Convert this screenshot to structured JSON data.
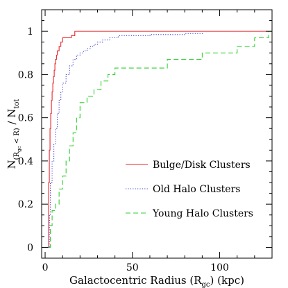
{
  "chart_data": {
    "type": "line",
    "step": true,
    "xlabel": {
      "prefix": "Galactocentric Radius (R",
      "sub": "gc",
      "suffix": ") (kpc)"
    },
    "ylabel": {
      "prefix": "N",
      "sub": "(R",
      "subsub": "gc",
      "sub_end": " < R)",
      "mid": " / N",
      "tot_sub": "tot"
    },
    "xlim": [
      -2,
      130
    ],
    "ylim": [
      -0.05,
      1.1
    ],
    "xticks": [
      0,
      50,
      100
    ],
    "yticks": [
      0,
      0.2,
      0.4,
      0.6,
      0.8,
      1
    ],
    "ytick_labels": [
      "0",
      "0.2",
      "0.4",
      "0.6",
      "0.8",
      "1"
    ],
    "grid": false,
    "legend_position": "lower-right",
    "series": [
      {
        "name": "Bulge/Disk Clusters",
        "color": "#e8262b",
        "style": "solid",
        "x": [
          1.5,
          2,
          2.4,
          2.8,
          3.2,
          3.6,
          4,
          4.4,
          4.8,
          5.2,
          5.6,
          6,
          6.5,
          7,
          8,
          9,
          10,
          11,
          13,
          15,
          17,
          130
        ],
        "y": [
          0,
          0.3,
          0.45,
          0.55,
          0.62,
          0.68,
          0.72,
          0.76,
          0.79,
          0.82,
          0.85,
          0.87,
          0.89,
          0.91,
          0.93,
          0.95,
          0.97,
          0.97,
          0.97,
          0.98,
          1.0,
          1.0
        ]
      },
      {
        "name": "Old Halo Clusters",
        "color": "#3b3bd9",
        "style": "dotted",
        "x": [
          1.5,
          2.5,
          3,
          4,
          5,
          6,
          7,
          8,
          9,
          10,
          12,
          14,
          16,
          18,
          20,
          22,
          24,
          26,
          28,
          30,
          33,
          37,
          42,
          50,
          60,
          80,
          91
        ],
        "y": [
          0,
          0.15,
          0.3,
          0.4,
          0.48,
          0.55,
          0.62,
          0.68,
          0.72,
          0.76,
          0.8,
          0.84,
          0.87,
          0.89,
          0.9,
          0.91,
          0.92,
          0.93,
          0.94,
          0.95,
          0.96,
          0.97,
          0.98,
          0.98,
          0.985,
          0.99,
          0.99
        ]
      },
      {
        "name": "Young Halo Clusters",
        "color": "#2fcf2f",
        "style": "dashed",
        "x": [
          2,
          3,
          4,
          6,
          8,
          10,
          12,
          14,
          16,
          18,
          20,
          24,
          28,
          32,
          36,
          40,
          55,
          70,
          80,
          90,
          100,
          110,
          120,
          128,
          130
        ],
        "y": [
          0,
          0.1,
          0.17,
          0.2,
          0.27,
          0.33,
          0.4,
          0.47,
          0.53,
          0.6,
          0.67,
          0.7,
          0.73,
          0.77,
          0.8,
          0.83,
          0.83,
          0.87,
          0.87,
          0.9,
          0.9,
          0.93,
          0.97,
          1.0,
          1.0
        ]
      }
    ]
  }
}
